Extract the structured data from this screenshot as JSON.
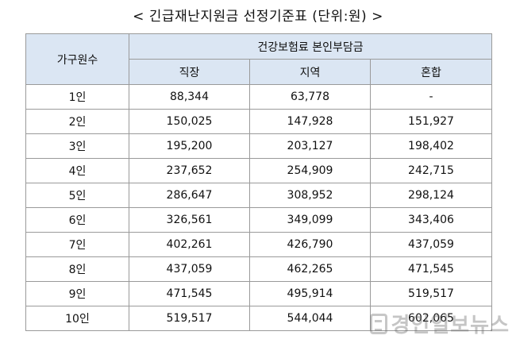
{
  "title": "< 긴급재난지원금 선정기준표 (단위:원) >",
  "table": {
    "row_header": "가구원수",
    "group_header": "건강보험료 본인부담금",
    "columns": [
      "직장",
      "지역",
      "혼합"
    ],
    "rows": [
      {
        "household": "1인",
        "values": [
          "88,344",
          "63,778",
          "-"
        ]
      },
      {
        "household": "2인",
        "values": [
          "150,025",
          "147,928",
          "151,927"
        ]
      },
      {
        "household": "3인",
        "values": [
          "195,200",
          "203,127",
          "198,402"
        ]
      },
      {
        "household": "4인",
        "values": [
          "237,652",
          "254,909",
          "242,715"
        ]
      },
      {
        "household": "5인",
        "values": [
          "286,647",
          "308,952",
          "298,124"
        ]
      },
      {
        "household": "6인",
        "values": [
          "326,561",
          "349,099",
          "343,406"
        ]
      },
      {
        "household": "7인",
        "values": [
          "402,261",
          "426,790",
          "437,059"
        ]
      },
      {
        "household": "8인",
        "values": [
          "437,059",
          "462,265",
          "471,545"
        ]
      },
      {
        "household": "9인",
        "values": [
          "471,545",
          "495,914",
          "519,517"
        ]
      },
      {
        "household": "10인",
        "values": [
          "519,517",
          "544,044",
          "602,065"
        ]
      }
    ]
  },
  "colors": {
    "header_bg": "#dbe6f3",
    "border": "#9a9a9a"
  },
  "watermark": {
    "text": "경인일보뉴스",
    "icon": "newspaper-logo-icon"
  }
}
